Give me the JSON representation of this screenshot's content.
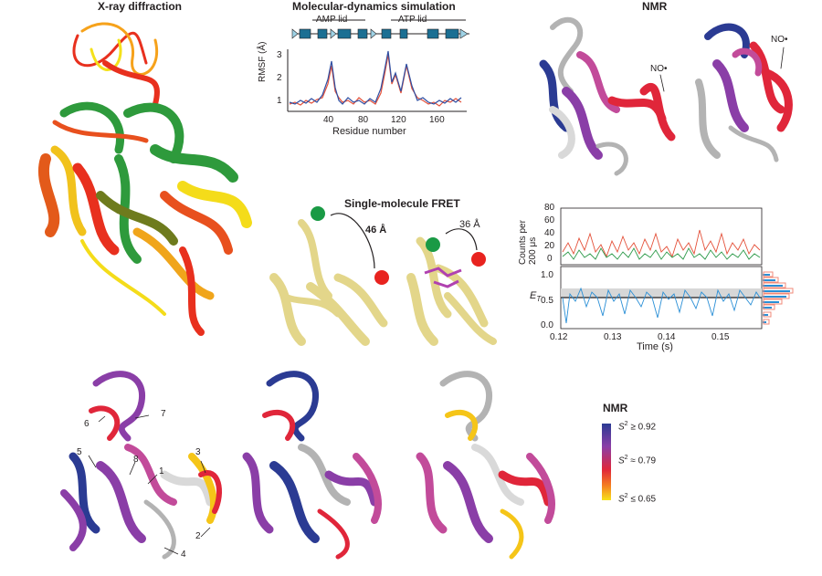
{
  "titles": {
    "xray": "X-ray diffraction",
    "md": "Molecular-dynamics simulation",
    "nmr": "NMR",
    "fret": "Single-molecule FRET"
  },
  "md": {
    "amp_lid": "AMP lid",
    "atp_lid": "ATP lid",
    "ylabel": "RMSF (Å)",
    "xlabel": "Residue number",
    "yticks": [
      "3",
      "2",
      "1"
    ],
    "xticks": [
      "40",
      "80",
      "120",
      "160"
    ]
  },
  "nmr_top": {
    "label_a": "NO•",
    "label_b": "NO•"
  },
  "fret": {
    "dist_a": "46 Å",
    "dist_b": "36 Å",
    "counts_ylabel_1": "Counts per",
    "counts_ylabel_2": "200 μs",
    "counts_yticks": [
      "80",
      "60",
      "40",
      "20",
      "0"
    ],
    "eff_ylabel": "E",
    "eff_ylabel_sub": "T",
    "eff_yticks": [
      "1.0",
      "0.5",
      "0.0"
    ],
    "xticks": [
      "0.12",
      "0.13",
      "0.14",
      "0.15"
    ],
    "xlabel": "Time (s)"
  },
  "bottom": {
    "numbers": [
      "1",
      "2",
      "3",
      "4",
      "5",
      "6",
      "7",
      "8"
    ]
  },
  "legend": {
    "title": "NMR",
    "high": "≥ 0.92",
    "mid": "≈ 0.79",
    "low": "≤ 0.65",
    "symbol": "S",
    "sup": "2",
    "colors": [
      "#2b3b93",
      "#8a3ea7",
      "#e0263a",
      "#f47a21",
      "#f7e21b"
    ]
  },
  "colors": {
    "blue_trace": "#2f4fa3",
    "red_trace": "#e4513a",
    "green_trace": "#2e9a4a",
    "fret_blue": "#2a8fd6",
    "histogram": "#f08a78"
  }
}
